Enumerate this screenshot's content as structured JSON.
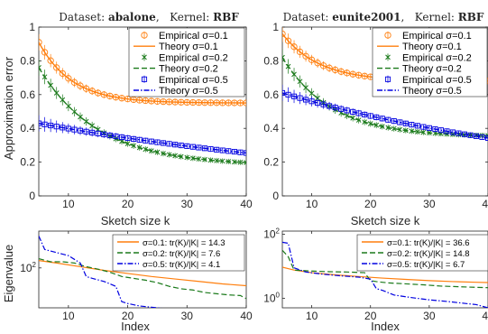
{
  "colors": {
    "s01": "#ff7f0e",
    "s02": "#1b7a1b",
    "s05": "#0000e0"
  },
  "chart_data": [
    {
      "id": "top-left",
      "type": "line",
      "title_prefix": "Dataset: ",
      "dataset": "abalone",
      "title_mid": ",   Kernel: ",
      "kernel": "RBF",
      "xlabel": "Sketch size k",
      "ylabel": "Approximation error",
      "xlim": [
        5,
        40
      ],
      "ylim": [
        0,
        1
      ],
      "xticks": [
        10,
        20,
        30,
        40
      ],
      "yticks": [
        0,
        0.2,
        0.4,
        0.6,
        0.8,
        1
      ],
      "series": [
        {
          "name": "Empirical σ=0.1",
          "kind": "empirical",
          "marker": "circle",
          "color_key": "s01",
          "a": 0.55,
          "b": 0.36,
          "p": 1.8,
          "x_from": 5,
          "x_to": 40
        },
        {
          "name": "Theory σ=0.1",
          "kind": "theory",
          "dash": "solid",
          "color_key": "s01",
          "a": 0.55,
          "b": 0.36,
          "p": 1.8,
          "x_from": 5,
          "x_to": 40
        },
        {
          "name": "Empirical σ=0.2",
          "kind": "empirical",
          "marker": "x",
          "color_key": "s02",
          "a": 0.18,
          "b": 0.58,
          "p": 1.0,
          "x_from": 5,
          "x_to": 40
        },
        {
          "name": "Theory σ=0.2",
          "kind": "theory",
          "dash": "dash",
          "color_key": "s02",
          "a": 0.18,
          "b": 0.58,
          "p": 1.0,
          "x_from": 5,
          "x_to": 40
        },
        {
          "name": "Empirical σ=0.5",
          "kind": "empirical",
          "marker": "square",
          "color_key": "s05",
          "a": 0.02,
          "b": 0.41,
          "p": 0.16,
          "x_from": 5,
          "x_to": 40
        },
        {
          "name": "Theory σ=0.5",
          "kind": "theory",
          "dash": "dashdot",
          "color_key": "s05",
          "a": 0.02,
          "b": 0.41,
          "p": 0.16,
          "x_from": 5,
          "x_to": 40
        }
      ],
      "legend_loc": "top-right"
    },
    {
      "id": "top-right",
      "type": "line",
      "title_prefix": "Dataset: ",
      "dataset": "eunite2001",
      "title_mid": ",   Kernel: ",
      "kernel": "RBF",
      "xlabel": "Sketch size k",
      "ylabel": "",
      "xlim": [
        5,
        40
      ],
      "ylim": [
        0,
        1
      ],
      "xticks": [
        10,
        20,
        30,
        40
      ],
      "yticks": [
        0,
        0.2,
        0.4,
        0.6,
        0.8,
        1
      ],
      "series": [
        {
          "name": "Empirical σ=0.1",
          "kind": "empirical",
          "marker": "circle",
          "color_key": "s01",
          "a": 0.68,
          "b": 0.28,
          "p": 1.6,
          "x_from": 5,
          "x_to": 40
        },
        {
          "name": "Theory σ=0.1",
          "kind": "theory",
          "dash": "solid",
          "color_key": "s01",
          "a": 0.68,
          "b": 0.28,
          "p": 1.6,
          "x_from": 5,
          "x_to": 40
        },
        {
          "name": "Empirical σ=0.2",
          "kind": "empirical",
          "marker": "x",
          "color_key": "s02",
          "a": 0.35,
          "b": 0.47,
          "p": 1.2,
          "x_from": 5,
          "x_to": 40
        },
        {
          "name": "Theory σ=0.2",
          "kind": "theory",
          "dash": "dash",
          "color_key": "s02",
          "a": 0.35,
          "b": 0.47,
          "p": 1.2,
          "x_from": 5,
          "x_to": 40
        },
        {
          "name": "Empirical σ=0.5",
          "kind": "empirical",
          "marker": "square",
          "color_key": "s05",
          "a": 0.06,
          "b": 0.55,
          "p": 0.19,
          "x_from": 5,
          "x_to": 40
        },
        {
          "name": "Theory σ=0.5",
          "kind": "theory",
          "dash": "dashdot",
          "color_key": "s05",
          "a": 0.06,
          "b": 0.55,
          "p": 0.19,
          "x_from": 5,
          "x_to": 40
        }
      ],
      "legend_loc": "top-right"
    },
    {
      "id": "bottom-left",
      "type": "line",
      "xlabel": "Index",
      "ylabel": "Eigenvalue",
      "yscale": "log",
      "xlim": [
        5,
        40
      ],
      "ylim_log10": [
        1.35,
        2.6
      ],
      "xticks": [
        10,
        20,
        30,
        40
      ],
      "ytick_labels": [
        {
          "base": "10",
          "exp": "2",
          "value_log10": 2
        }
      ],
      "series": [
        {
          "name": "σ=0.1:   tr(K)/|K| = 14.3",
          "dash": "solid",
          "color_key": "s01",
          "x": [
            5,
            8,
            12,
            16,
            20,
            24,
            28,
            32,
            36,
            40
          ],
          "log10_y": [
            2.12,
            2.08,
            2.02,
            1.96,
            1.91,
            1.86,
            1.82,
            1.78,
            1.74,
            1.71
          ]
        },
        {
          "name": "σ=0.2:   tr(K)/|K| = 7.6",
          "dash": "dash",
          "color_key": "s02",
          "x": [
            5,
            7,
            9,
            11,
            13,
            15,
            17,
            19,
            21,
            23,
            25,
            27,
            29,
            31,
            33,
            35,
            37,
            39,
            40
          ],
          "log10_y": [
            2.15,
            2.1,
            2.1,
            2.08,
            2.02,
            1.98,
            1.93,
            1.86,
            1.83,
            1.8,
            1.76,
            1.7,
            1.66,
            1.64,
            1.6,
            1.58,
            1.56,
            1.55,
            1.5
          ]
        },
        {
          "name": "σ=0.5:   tr(K)/|K| = 4.1",
          "dash": "dashdot",
          "color_key": "s05",
          "x": [
            5,
            6,
            8,
            10,
            12,
            13,
            14,
            16,
            18,
            19,
            20,
            22,
            24,
            26,
            28,
            30,
            33,
            36,
            40
          ],
          "log10_y": [
            2.52,
            2.3,
            2.25,
            2.2,
            2.08,
            1.86,
            1.83,
            1.78,
            1.7,
            1.45,
            1.42,
            1.38,
            1.36,
            1.34,
            1.31,
            1.28,
            1.24,
            1.2,
            1.15
          ]
        }
      ],
      "legend_loc": "top-right"
    },
    {
      "id": "bottom-right",
      "type": "line",
      "xlabel": "Index",
      "ylabel": "",
      "yscale": "log",
      "xlim": [
        5,
        40
      ],
      "ylim_log10": [
        -0.3,
        2.1
      ],
      "xticks": [
        10,
        20,
        30,
        40
      ],
      "ytick_labels": [
        {
          "base": "10",
          "exp": "0",
          "value_log10": 0
        },
        {
          "base": "10",
          "exp": "2",
          "value_log10": 2
        }
      ],
      "series": [
        {
          "name": "σ=0.1:   tr(K)/|K| = 36.6",
          "dash": "solid",
          "color_key": "s01",
          "x": [
            5,
            7,
            10,
            14,
            18,
            22,
            26,
            30,
            34,
            38,
            40
          ],
          "log10_y": [
            0.97,
            0.88,
            0.8,
            0.73,
            0.68,
            0.63,
            0.59,
            0.55,
            0.52,
            0.5,
            0.49
          ]
        },
        {
          "name": "σ=0.2:   tr(K)/|K| = 14.8",
          "dash": "dash",
          "color_key": "s02",
          "x": [
            5,
            6,
            7,
            10,
            13,
            16,
            19,
            20,
            21,
            23,
            26,
            29,
            32,
            35,
            38,
            40
          ],
          "log10_y": [
            1.5,
            1.3,
            0.88,
            0.85,
            0.83,
            0.82,
            0.8,
            0.55,
            0.52,
            0.48,
            0.45,
            0.42,
            0.38,
            0.36,
            0.34,
            0.33
          ]
        },
        {
          "name": "σ=0.5:   tr(K)/|K| = 6.7",
          "dash": "dashdot",
          "color_key": "s05",
          "x": [
            5,
            6,
            7,
            9,
            12,
            15,
            18,
            20,
            21,
            22,
            24,
            27,
            30,
            33,
            36,
            38,
            39,
            40
          ],
          "log10_y": [
            1.75,
            1.72,
            0.95,
            0.82,
            0.75,
            0.7,
            0.66,
            0.6,
            0.3,
            0.25,
            0.1,
            0.02,
            -0.05,
            -0.1,
            -0.16,
            -0.2,
            -0.25,
            -0.3
          ]
        }
      ],
      "legend_loc": "top-right"
    }
  ]
}
